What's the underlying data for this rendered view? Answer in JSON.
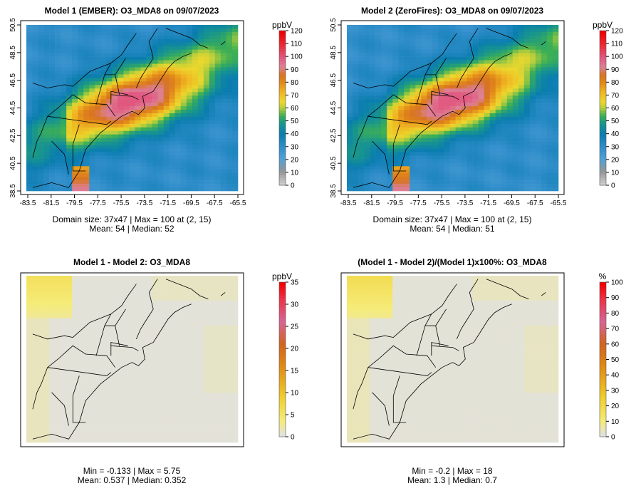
{
  "panels": [
    {
      "title": "Model 1 (EMBER): O3_MDA8 on 09/07/2023",
      "stats_line1": "Domain size: 37x47 | Max = 100 at (2, 15)",
      "stats_line2": "Mean: 54 |  Median: 52",
      "colorbar": {
        "unit": "ppbV",
        "ticks": [
          "0",
          "10",
          "20",
          "30",
          "40",
          "50",
          "60",
          "70",
          "80",
          "90",
          "100",
          "110",
          "120"
        ]
      },
      "x_ticks": [
        "-83.5",
        "-81.5",
        "-79.5",
        "-77.5",
        "-75.5",
        "-73.5",
        "-71.5",
        "-69.5",
        "-67.5",
        "-65.5"
      ],
      "y_ticks": [
        "38.5",
        "40.5",
        "42.5",
        "44.5",
        "46.5",
        "48.5",
        "50.5"
      ]
    },
    {
      "title": "Model 2 (ZeroFires): O3_MDA8 on 09/07/2023",
      "stats_line1": "Domain size: 37x47 | Max = 100 at (2, 15)",
      "stats_line2": "Mean: 54 |  Median: 51",
      "colorbar": {
        "unit": "ppbV",
        "ticks": [
          "0",
          "10",
          "20",
          "30",
          "40",
          "50",
          "60",
          "70",
          "80",
          "90",
          "100",
          "110",
          "120"
        ]
      },
      "x_ticks": [
        "-83.5",
        "-81.5",
        "-79.5",
        "-77.5",
        "-75.5",
        "-73.5",
        "-71.5",
        "-69.5",
        "-67.5",
        "-65.5"
      ],
      "y_ticks": [
        "38.5",
        "40.5",
        "42.5",
        "44.5",
        "46.5",
        "48.5",
        "50.5"
      ]
    },
    {
      "title": "Model 1 - Model 2: O3_MDA8",
      "stats_line1": "Min = -0.133 | Max = 5.75",
      "stats_line2": "Mean: 0.537 |  Median: 0.352",
      "colorbar": {
        "unit": "ppbV",
        "ticks": [
          "0",
          "5",
          "10",
          "15",
          "20",
          "25",
          "30",
          "35"
        ]
      }
    },
    {
      "title": "(Model 1 - Model 2)/(Model 1)x100%: O3_MDA8",
      "stats_line1": "Min = -0.2 | Max = 18",
      "stats_line2": "Mean: 1.3 |  Median: 0.7",
      "colorbar": {
        "unit": "%",
        "ticks": [
          "0",
          "10",
          "20",
          "30",
          "40",
          "50",
          "60",
          "70",
          "80",
          "90",
          "100"
        ]
      }
    }
  ],
  "chart_data": [
    {
      "type": "heatmap",
      "title": "Model 1 (EMBER): O3_MDA8 on 09/07/2023",
      "variable": "O3_MDA8",
      "date": "09/07/2023",
      "unit": "ppbV",
      "domain_size": "37x47",
      "max": 100,
      "max_location": [
        2,
        15
      ],
      "mean": 54,
      "median": 52,
      "xlim": [
        -84,
        -65
      ],
      "ylim": [
        38.5,
        50.5
      ],
      "x_ticks": [
        -83.5,
        -81.5,
        -79.5,
        -77.5,
        -75.5,
        -73.5,
        -71.5,
        -69.5,
        -67.5,
        -65.5
      ],
      "y_ticks": [
        38.5,
        40.5,
        42.5,
        44.5,
        46.5,
        48.5,
        50.5
      ],
      "color_range": [
        0,
        120
      ],
      "colorbar_ticks": [
        0,
        10,
        20,
        30,
        40,
        50,
        60,
        70,
        80,
        90,
        100,
        110,
        120
      ]
    },
    {
      "type": "heatmap",
      "title": "Model 2 (ZeroFires): O3_MDA8 on 09/07/2023",
      "variable": "O3_MDA8",
      "date": "09/07/2023",
      "unit": "ppbV",
      "domain_size": "37x47",
      "max": 100,
      "max_location": [
        2,
        15
      ],
      "mean": 54,
      "median": 51,
      "xlim": [
        -84,
        -65
      ],
      "ylim": [
        38.5,
        50.5
      ],
      "x_ticks": [
        -83.5,
        -81.5,
        -79.5,
        -77.5,
        -75.5,
        -73.5,
        -71.5,
        -69.5,
        -67.5,
        -65.5
      ],
      "y_ticks": [
        38.5,
        40.5,
        42.5,
        44.5,
        46.5,
        48.5,
        50.5
      ],
      "color_range": [
        0,
        120
      ],
      "colorbar_ticks": [
        0,
        10,
        20,
        30,
        40,
        50,
        60,
        70,
        80,
        90,
        100,
        110,
        120
      ]
    },
    {
      "type": "heatmap",
      "title": "Model 1 - Model 2: O3_MDA8",
      "unit": "ppbV",
      "min": -0.133,
      "max": 5.75,
      "mean": 0.537,
      "median": 0.352,
      "color_range": [
        0,
        35
      ],
      "colorbar_ticks": [
        0,
        5,
        10,
        15,
        20,
        25,
        30,
        35
      ]
    },
    {
      "type": "heatmap",
      "title": "(Model 1 - Model 2)/(Model 1)x100%: O3_MDA8",
      "unit": "%",
      "min": -0.2,
      "max": 18,
      "mean": 1.3,
      "median": 0.7,
      "color_range": [
        0,
        100
      ],
      "colorbar_ticks": [
        0,
        10,
        20,
        30,
        40,
        50,
        60,
        70,
        80,
        90,
        100
      ]
    }
  ]
}
